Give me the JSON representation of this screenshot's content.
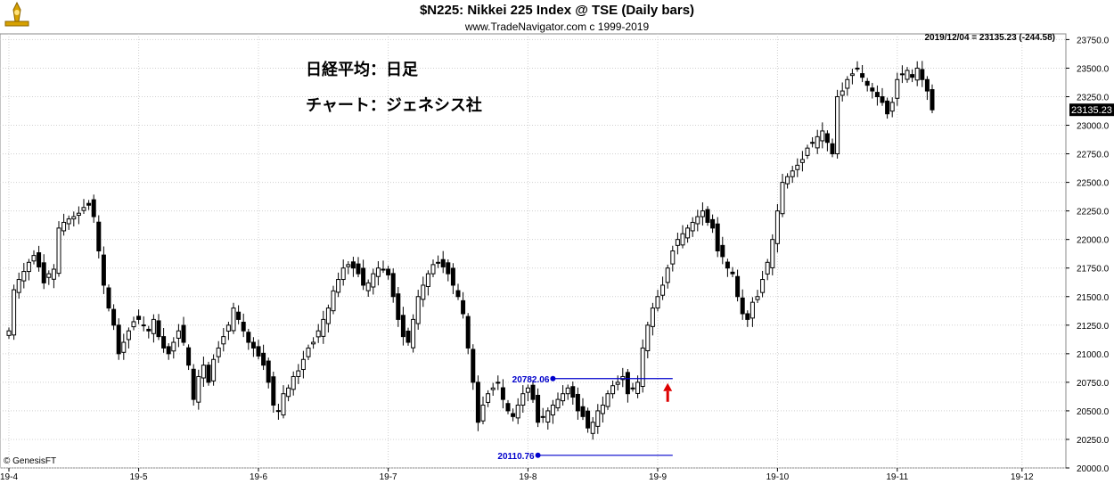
{
  "header": {
    "title": "$N225:  Nikkei 225 Index @ TSE  (Daily bars)",
    "subtitle": "www.TradeNavigator.com c 1999-2019",
    "last_info": "2019/12/04 = 23135.23 (-244.58)"
  },
  "annotations": {
    "jp_line1": "日経平均：日足",
    "jp_line2": "チャート：ジェネシス社",
    "copyright": "© GenesisFT",
    "last_price_label": "23135.23",
    "level_high_label": "20782.06",
    "level_low_label": "20110.76"
  },
  "colors": {
    "grid": "#d0d0d0",
    "level_line": "#0000cc",
    "arrow": "#dd0000",
    "up_candle": "#ffffff",
    "down_candle": "#000000"
  },
  "chart_data": {
    "type": "candlestick",
    "title": "$N225:  Nikkei 225 Index @ TSE  (Daily bars)",
    "ylim": [
      20000,
      23800
    ],
    "y_ticks": [
      20000,
      20250,
      20500,
      20750,
      21000,
      21250,
      21500,
      21750,
      22000,
      22250,
      22500,
      22750,
      23000,
      23250,
      23500,
      23750
    ],
    "y_tick_labels": [
      "20000.0",
      "20250.0",
      "20500.0",
      "20750.0",
      "21000.0",
      "21250.0",
      "21500.0",
      "21750.0",
      "22000.0",
      "22250.0",
      "22500.0",
      "22750.0",
      "23000.0",
      "23250.0",
      "23500.0",
      "23750.0"
    ],
    "x_months": [
      {
        "label": "19-4",
        "bar": 0
      },
      {
        "label": "19-5",
        "bar": 26
      },
      {
        "label": "19-6",
        "bar": 50
      },
      {
        "label": "19-7",
        "bar": 76
      },
      {
        "label": "19-8",
        "bar": 104
      },
      {
        "label": "19-9",
        "bar": 130
      },
      {
        "label": "19-10",
        "bar": 154
      },
      {
        "label": "19-11",
        "bar": 178
      },
      {
        "label": "19-12",
        "bar": 203
      }
    ],
    "grid": true,
    "levels": [
      {
        "value": 20782.06,
        "start_bar": 109,
        "end_bar": 133,
        "label": "20782.06"
      },
      {
        "value": 20110.76,
        "start_bar": 106,
        "end_bar": 133,
        "label": "20110.76"
      }
    ],
    "arrow_at_bar": 132,
    "closes": [
      21200,
      21560,
      21650,
      21720,
      21800,
      21860,
      21760,
      21620,
      21700,
      21740,
      22100,
      22150,
      22180,
      22200,
      22230,
      22280,
      22300,
      22200,
      21900,
      21600,
      21400,
      21250,
      21000,
      21100,
      21200,
      21280,
      21300,
      21250,
      21200,
      21300,
      21150,
      21050,
      21000,
      21100,
      21200,
      21100,
      20900,
      20600,
      20800,
      20900,
      20750,
      20950,
      21050,
      21150,
      21250,
      21400,
      21300,
      21200,
      21100,
      21050,
      20980,
      20900,
      20750,
      20550,
      20500,
      20650,
      20700,
      20800,
      20850,
      20950,
      21050,
      21100,
      21200,
      21300,
      21400,
      21550,
      21650,
      21750,
      21780,
      21750,
      21700,
      21600,
      21620,
      21700,
      21750,
      21740,
      21690,
      21500,
      21300,
      21150,
      21100,
      21300,
      21500,
      21600,
      21700,
      21780,
      21800,
      21760,
      21700,
      21600,
      21500,
      21350,
      21050,
      20750,
      20400,
      20550,
      20650,
      20700,
      20750,
      20600,
      20500,
      20450,
      20550,
      20650,
      20700,
      20600,
      20400,
      20450,
      20500,
      20550,
      20600,
      20650,
      20700,
      20620,
      20500,
      20450,
      20350,
      20400,
      20500,
      20550,
      20650,
      20720,
      20750,
      20800,
      20650,
      20700,
      20750,
      21050,
      21250,
      21400,
      21500,
      21600,
      21750,
      21900,
      22000,
      22050,
      22100,
      22150,
      22200,
      22250,
      22150,
      22100,
      21900,
      21850,
      21750,
      21700,
      21500,
      21350,
      21300,
      21450,
      21500,
      21650,
      21800,
      22000,
      22250,
      22500,
      22550,
      22600,
      22650,
      22700,
      22800,
      22850,
      22900,
      22950,
      22850,
      22750,
      23250,
      23300,
      23400,
      23450,
      23500,
      23420,
      23350,
      23300,
      23250,
      23200,
      23100,
      23200,
      23400,
      23450,
      23480,
      23420,
      23500,
      23400,
      23300,
      23135.23
    ]
  }
}
